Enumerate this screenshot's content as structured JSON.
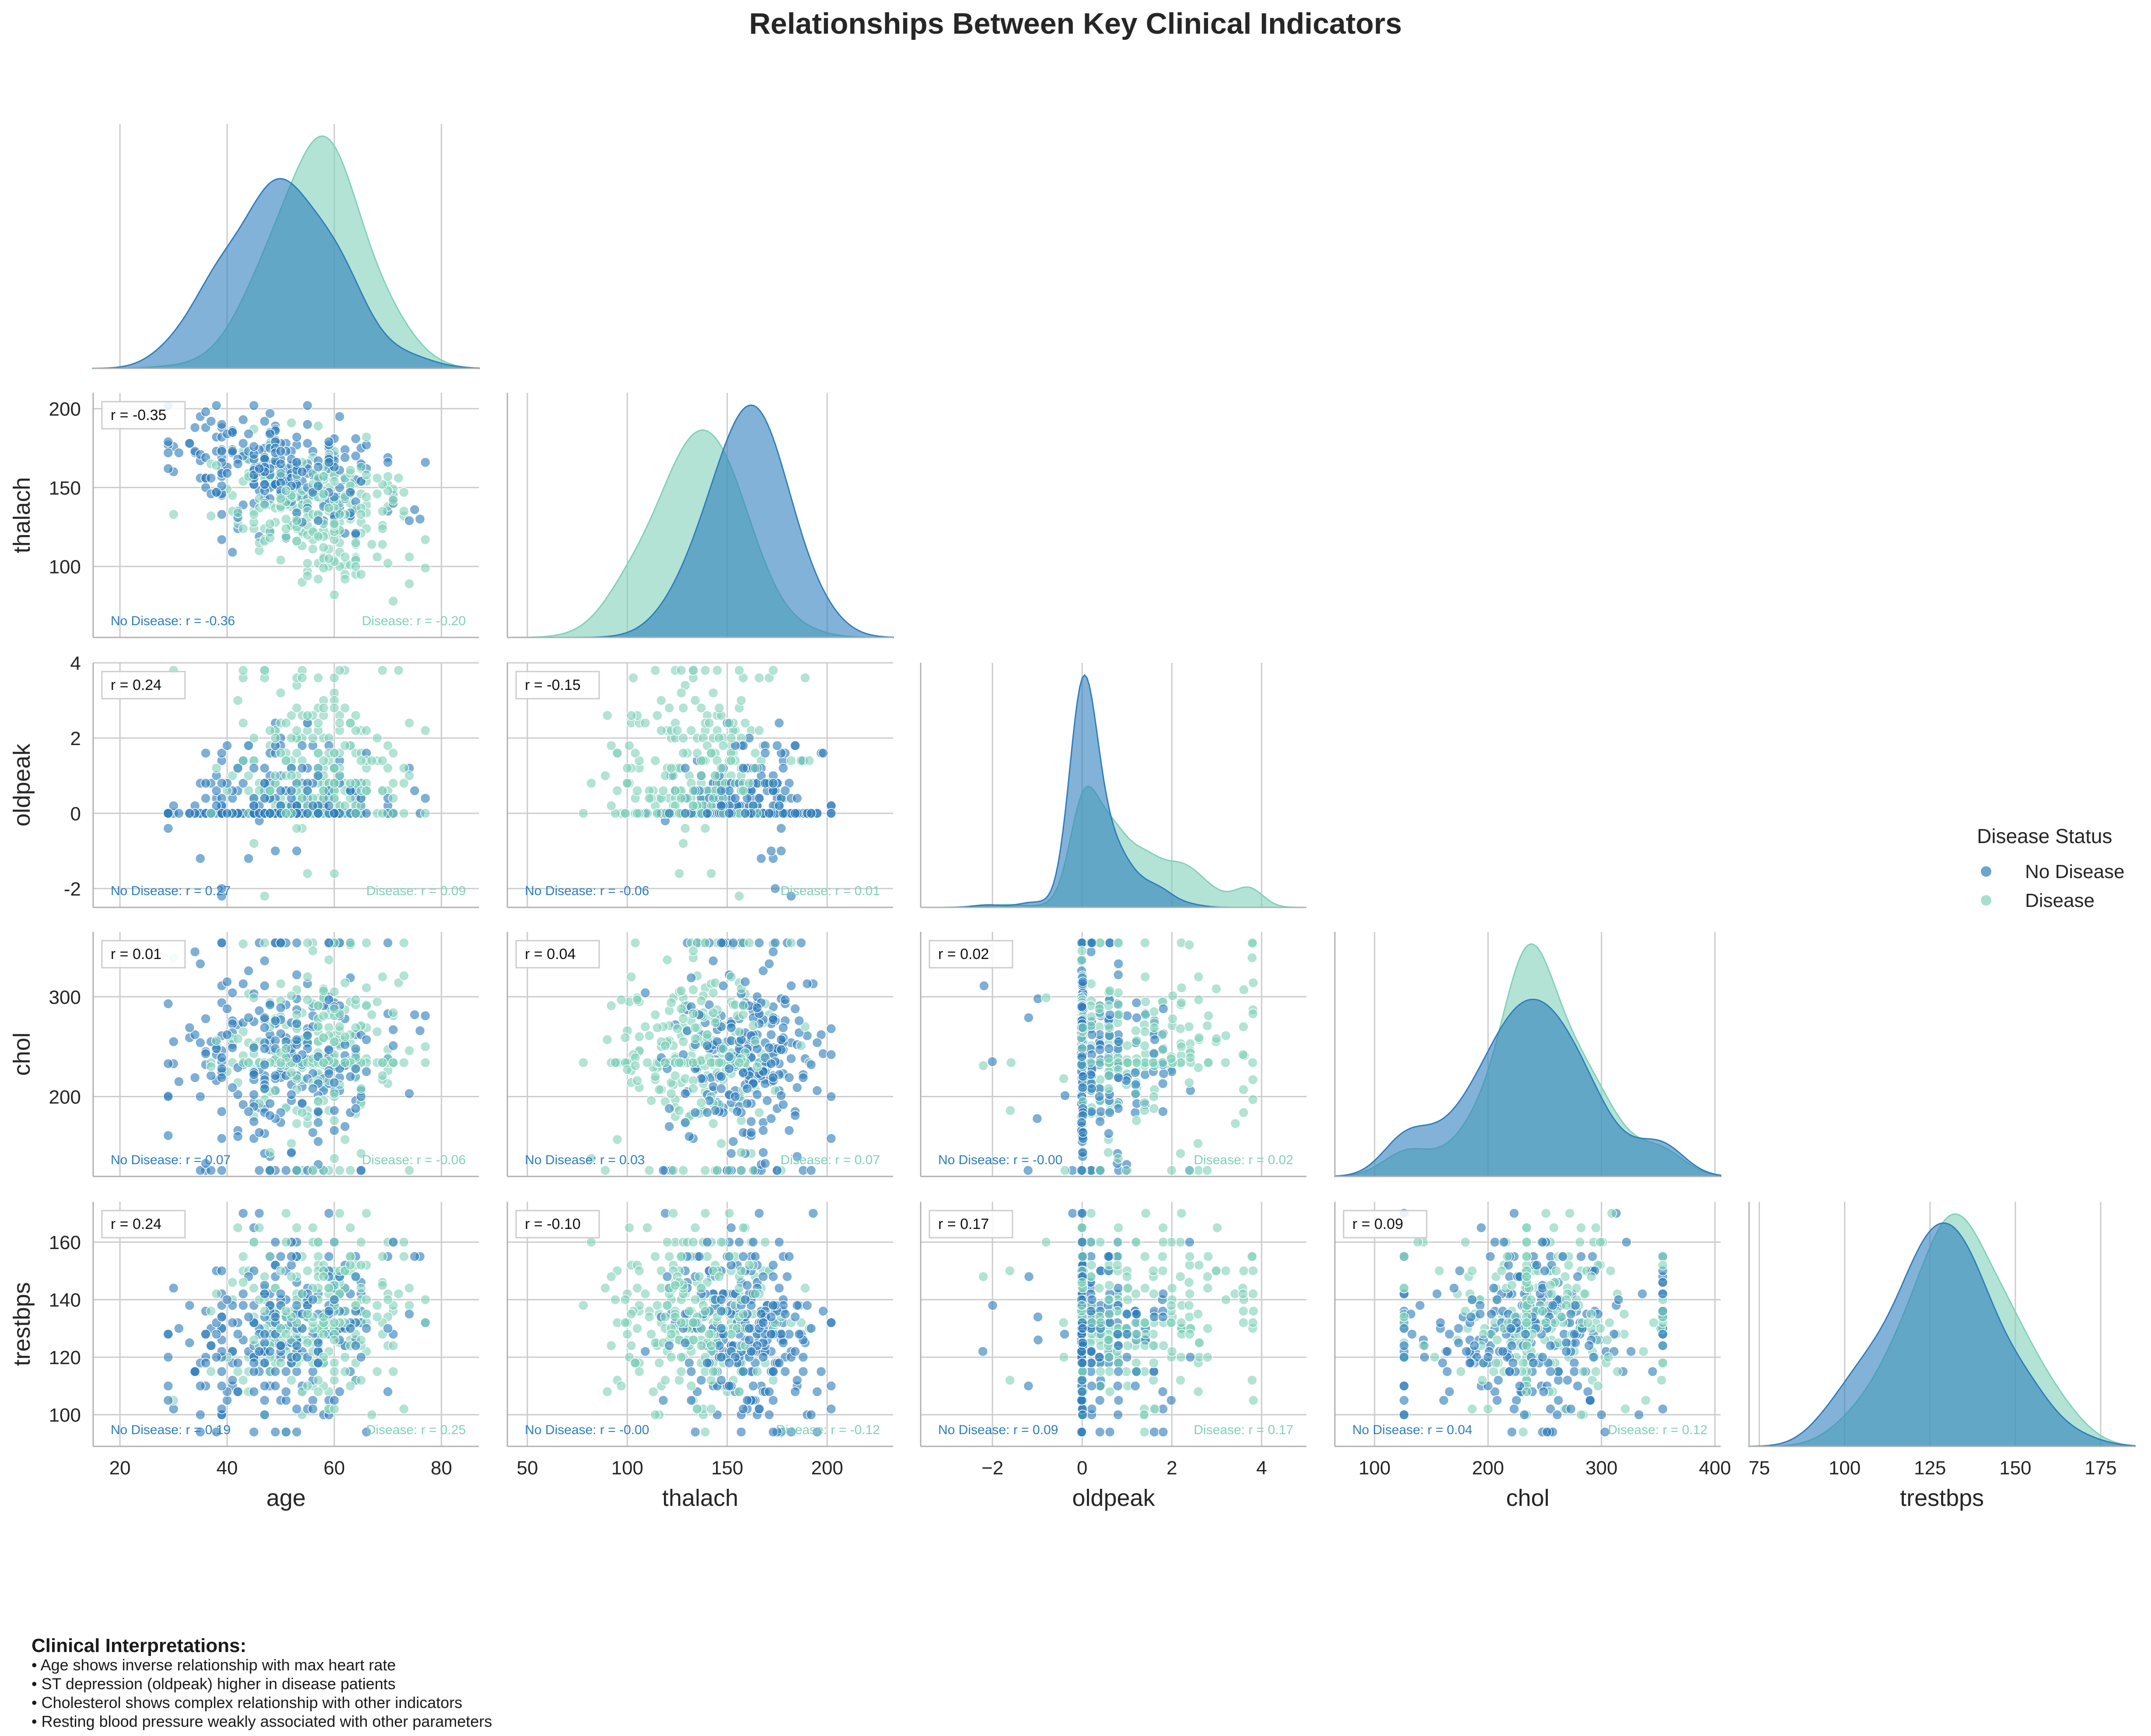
{
  "title": "Relationships Between Key Clinical Indicators",
  "legend": {
    "title": "Disease Status",
    "entries": [
      {
        "label": "No Disease",
        "color": "#2e7ebc"
      },
      {
        "label": "Disease",
        "color": "#7fd1b9"
      }
    ]
  },
  "notes": {
    "title": "Clinical Interpretations:",
    "lines": [
      "• Age shows inverse relationship with max heart rate",
      "• ST depression (oldpeak) higher in disease patients",
      "• Cholesterol shows complex relationship with other indicators",
      "• Resting blood pressure weakly associated with other parameters"
    ]
  },
  "chart_data": {
    "type": "scatter",
    "title": "Relationships Between Key Clinical Indicators",
    "kind": "pairplot-lower-corner",
    "series": [
      {
        "name": "No Disease",
        "color": "#2e7ebc"
      },
      {
        "name": "Disease",
        "color": "#7fd1b9"
      }
    ],
    "variables": [
      {
        "name": "age",
        "xlim": [
          15,
          87
        ],
        "ticks": [
          20,
          40,
          60,
          80
        ],
        "mean_no": 50.5,
        "sd_no": 9.5,
        "mean_d": 56.5,
        "sd_d": 8.0,
        "min": 29,
        "max": 77
      },
      {
        "name": "thalach",
        "xlim": [
          40,
          233
        ],
        "ylim": [
          55,
          210
        ],
        "ticks": [
          50,
          100,
          150,
          200
        ],
        "yticks": [
          100,
          150,
          200
        ],
        "mean_no": 158,
        "sd_no": 19,
        "mean_d": 139,
        "sd_d": 22,
        "min": 71,
        "max": 202
      },
      {
        "name": "oldpeak",
        "xlim": [
          -3.6,
          5.0
        ],
        "ylim": [
          -2.5,
          4.0
        ],
        "ticks": [
          -2,
          0,
          2,
          4
        ],
        "yticks": [
          -2,
          0,
          2,
          4
        ],
        "min": -2.6,
        "max": 3.8
      },
      {
        "name": "chol",
        "xlim": [
          65,
          405
        ],
        "ylim": [
          120,
          365
        ],
        "ticks": [
          100,
          200,
          300,
          400
        ],
        "yticks": [
          200,
          300
        ],
        "mean_no": 240,
        "sd_no": 45,
        "mean_d": 245,
        "sd_d": 40,
        "min": 126,
        "max": 354
      },
      {
        "name": "trestbps",
        "xlim": [
          72,
          185
        ],
        "ylim": [
          89,
          174
        ],
        "ticks": [
          75,
          100,
          125,
          150,
          175
        ],
        "yticks": [
          100,
          120,
          140,
          160
        ],
        "mean_no": 129,
        "sd_no": 15,
        "mean_d": 134,
        "sd_d": 16,
        "min": 94,
        "max": 170
      }
    ],
    "pairs": [
      {
        "x": "age",
        "y": "thalach",
        "r": "r = -0.35",
        "r_no": "No Disease: r = -0.36",
        "r_d": "Disease: r = -0.20"
      },
      {
        "x": "age",
        "y": "oldpeak",
        "r": "r = 0.24",
        "r_no": "No Disease: r = 0.27",
        "r_d": "Disease: r = 0.09"
      },
      {
        "x": "thalach",
        "y": "oldpeak",
        "r": "r = -0.15",
        "r_no": "No Disease: r = -0.06",
        "r_d": "Disease: r = 0.01"
      },
      {
        "x": "age",
        "y": "chol",
        "r": "r = 0.01",
        "r_no": "No Disease: r = 0.07",
        "r_d": "Disease: r = -0.06"
      },
      {
        "x": "thalach",
        "y": "chol",
        "r": "r = 0.04",
        "r_no": "No Disease: r = 0.03",
        "r_d": "Disease: r = 0.07"
      },
      {
        "x": "oldpeak",
        "y": "chol",
        "r": "r = 0.02",
        "r_no": "No Disease: r = -0.00",
        "r_d": "Disease: r = 0.02"
      },
      {
        "x": "age",
        "y": "trestbps",
        "r": "r = 0.24",
        "r_no": "No Disease: r = 0.19",
        "r_d": "Disease: r = 0.25"
      },
      {
        "x": "thalach",
        "y": "trestbps",
        "r": "r = -0.10",
        "r_no": "No Disease: r = -0.00",
        "r_d": "Disease: r = -0.12"
      },
      {
        "x": "oldpeak",
        "y": "trestbps",
        "r": "r = 0.17",
        "r_no": "No Disease: r = 0.09",
        "r_d": "Disease: r = 0.17"
      },
      {
        "x": "chol",
        "y": "trestbps",
        "r": "r = 0.09",
        "r_no": "No Disease: r = 0.04",
        "r_d": "Disease: r = 0.12"
      }
    ],
    "grid": true,
    "legend_position": "right"
  }
}
